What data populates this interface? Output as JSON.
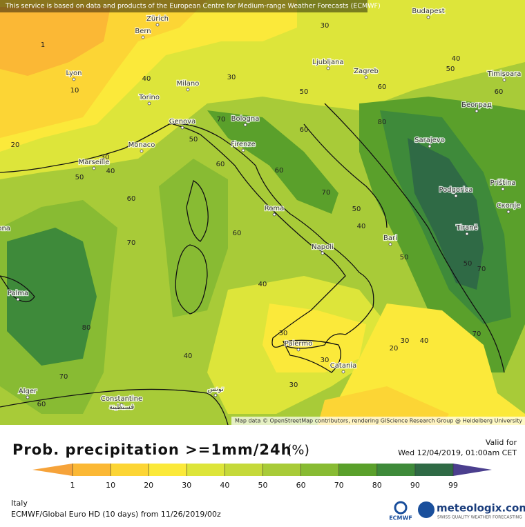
{
  "header_notice": "This service is based on data and products of the European Centre for Medium-range Weather Forecasts (ECMWF)",
  "map": {
    "cities": [
      "Budapest",
      "Bern",
      "Zürich",
      "Lyon",
      "Milano",
      "Torino",
      "Ljubljana",
      "Zagreb",
      "Timișoara",
      "Genova",
      "Bologna",
      "Београд",
      "Monaco",
      "Marseille",
      "Firenze",
      "Sarajevo",
      "Priština",
      "Podgorica",
      "Скопје",
      "Roma",
      "Barcelona",
      "Bari",
      "Tiranë",
      "Napoli",
      "Palma",
      "Palermo",
      "Catania",
      "Alger",
      "Constantine",
      "قسنطينة",
      "تونس"
    ],
    "contour_labels": [
      30,
      1,
      40,
      50,
      10,
      40,
      30,
      60,
      50,
      60,
      70,
      60,
      80,
      20,
      50,
      30,
      40,
      50,
      60,
      60,
      70,
      50,
      40,
      60,
      70,
      60,
      40,
      80,
      50,
      70,
      50,
      40,
      30,
      30,
      40,
      20,
      30,
      70,
      30,
      70,
      60
    ],
    "attribution": "Map data © OpenStreetMap contributors, rendering GIScience Research Group @ Heidelberg University"
  },
  "legend": {
    "title": "Prob. precipitation >=1mm/24h",
    "unit": "(%)",
    "ticks": [
      1,
      10,
      20,
      30,
      40,
      50,
      60,
      70,
      80,
      90,
      99
    ],
    "colors": [
      "#f6a33a",
      "#fbb835",
      "#fcd535",
      "#fbe93a",
      "#dde53a",
      "#c5d93a",
      "#a8cb38",
      "#88bb33",
      "#5aa02b",
      "#3e8a3a",
      "#2f6a45",
      "#4b3f8e"
    ]
  },
  "valid": {
    "label": "Valid for",
    "time": "Wed 12/04/2019, 01:00am CET"
  },
  "footer": {
    "region": "Italy",
    "model": "ECMWF/Global Euro HD (10 days) from 11/26/2019/00z",
    "ecmwf": "ECMWF",
    "brand": "meteologix.com",
    "tagline": "SWISS QUALITY WEATHER FORECASTING"
  }
}
